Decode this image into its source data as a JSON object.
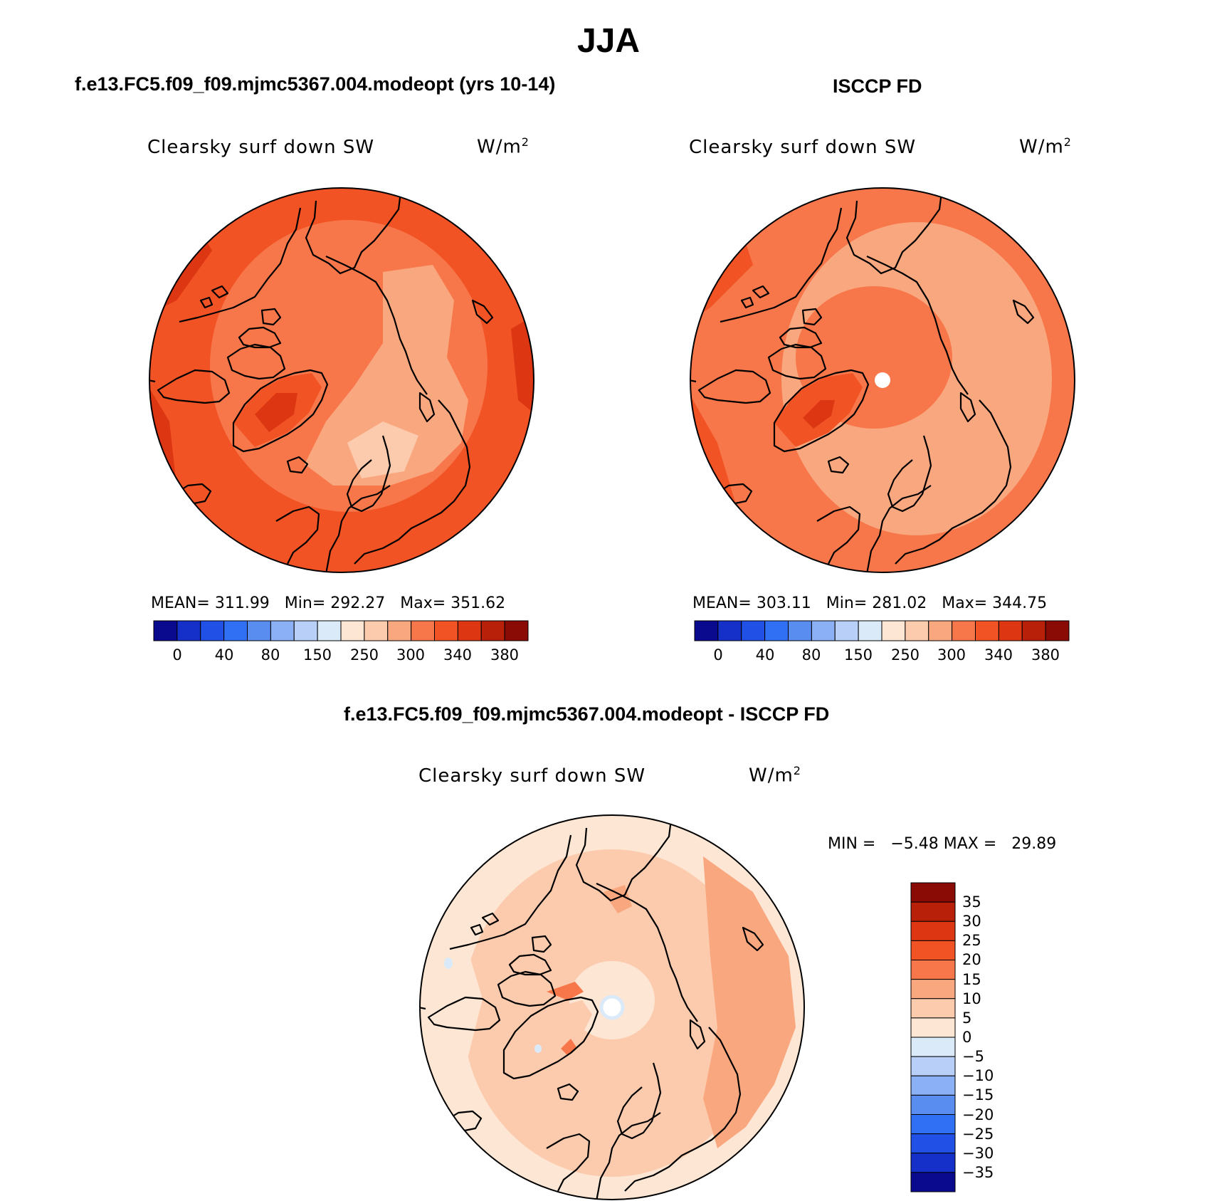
{
  "figure": {
    "title": "JJA",
    "colors": {
      "cool": [
        "#0a0a8f",
        "#1530c8",
        "#2050e6",
        "#3070f5",
        "#5a8df0",
        "#8cb0f5",
        "#b8cff7",
        "#daeaf8"
      ],
      "warm": [
        "#fde6d3",
        "#fccaad",
        "#f9a77f",
        "#f7774a",
        "#f15325",
        "#dc3612",
        "#b8200a",
        "#8a0a05"
      ]
    }
  },
  "panels": [
    {
      "id": "model",
      "title": "f.e13.FC5.f09_f09.mjmc5367.004.modeopt (yrs 10-14)",
      "variable": "Clearsky surf down SW",
      "units": "W/m",
      "units_sup": "2",
      "stats": {
        "mean_label": "MEAN=",
        "mean": "311.99",
        "min_label": "Min=",
        "min": "292.27",
        "max_label": "Max=",
        "max": "351.62"
      },
      "colorbar_ticks": [
        "0",
        "40",
        "80",
        "150",
        "250",
        "300",
        "340",
        "380"
      ]
    },
    {
      "id": "obs",
      "title": "ISCCP FD",
      "variable": "Clearsky surf down SW",
      "units": "W/m",
      "units_sup": "2",
      "stats": {
        "mean_label": "MEAN=",
        "mean": "303.11",
        "min_label": "Min=",
        "min": "281.02",
        "max_label": "Max=",
        "max": "344.75"
      },
      "colorbar_ticks": [
        "0",
        "40",
        "80",
        "150",
        "250",
        "300",
        "340",
        "380"
      ]
    }
  ],
  "difference": {
    "title": "f.e13.FC5.f09_f09.mjmc5367.004.modeopt - ISCCP FD",
    "variable": "Clearsky surf down SW",
    "units": "W/m",
    "units_sup": "2",
    "minmax": {
      "min_label": "MIN =",
      "min": "−5.48",
      "max_label": "MAX =",
      "max": "29.89"
    },
    "colorbar_ticks": [
      "35",
      "30",
      "25",
      "20",
      "15",
      "10",
      "5",
      "0",
      "−5",
      "−10",
      "−15",
      "−20",
      "−25",
      "−30",
      "−35"
    ]
  }
}
